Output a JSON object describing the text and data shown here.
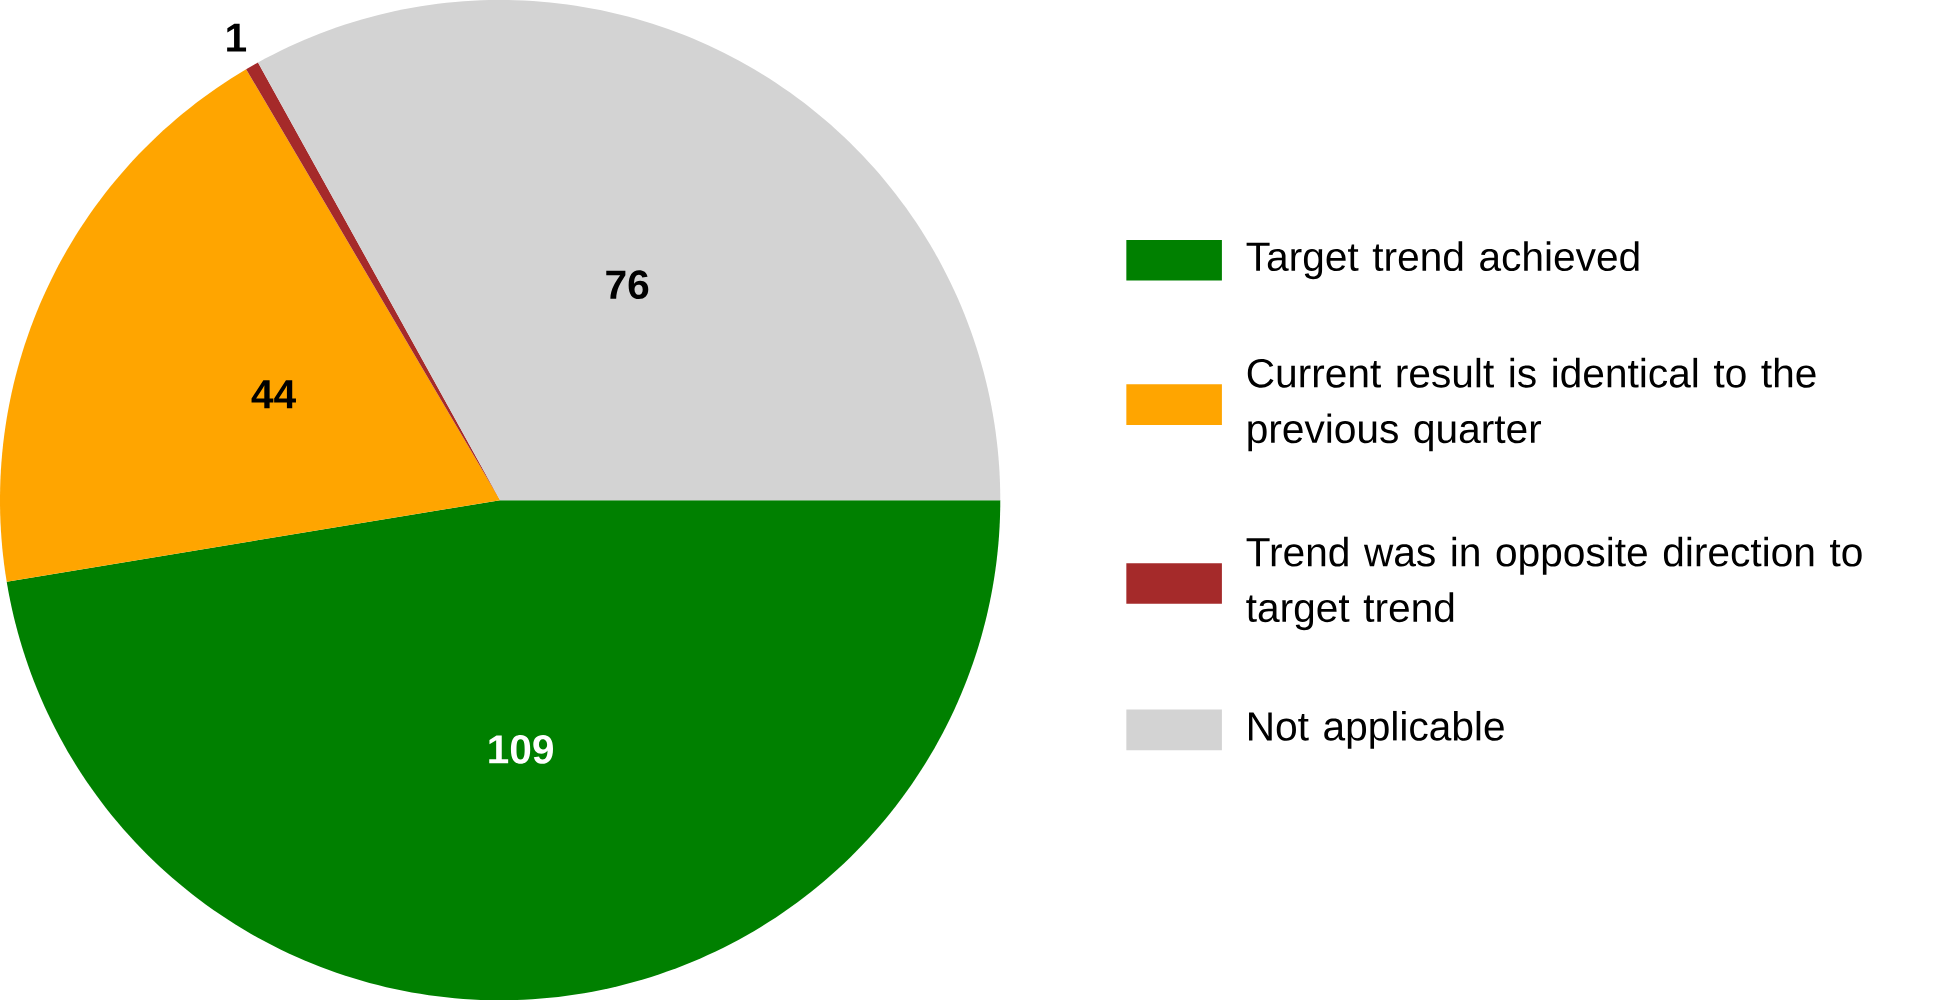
{
  "chart_data": {
    "type": "pie",
    "categories": [
      "Target trend achieved",
      "Current result is identical to the previous quarter",
      "Trend was in opposite direction to target trend",
      "Not applicable"
    ],
    "values": [
      109,
      44,
      1,
      76
    ],
    "colors": [
      "#008000",
      "#ffa500",
      "#a52a2a",
      "#d3d3d3"
    ],
    "data_labels": true,
    "legend": "right"
  }
}
